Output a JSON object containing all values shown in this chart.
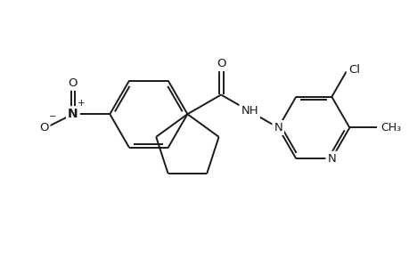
{
  "bg_color": "#ffffff",
  "line_color": "#1a1a1a",
  "line_width": 1.4,
  "font_size": 9.5,
  "fig_width": 4.6,
  "fig_height": 3.0,
  "dpi": 100,
  "xlim": [
    -5.0,
    5.5
  ],
  "ylim": [
    -3.2,
    2.8
  ]
}
